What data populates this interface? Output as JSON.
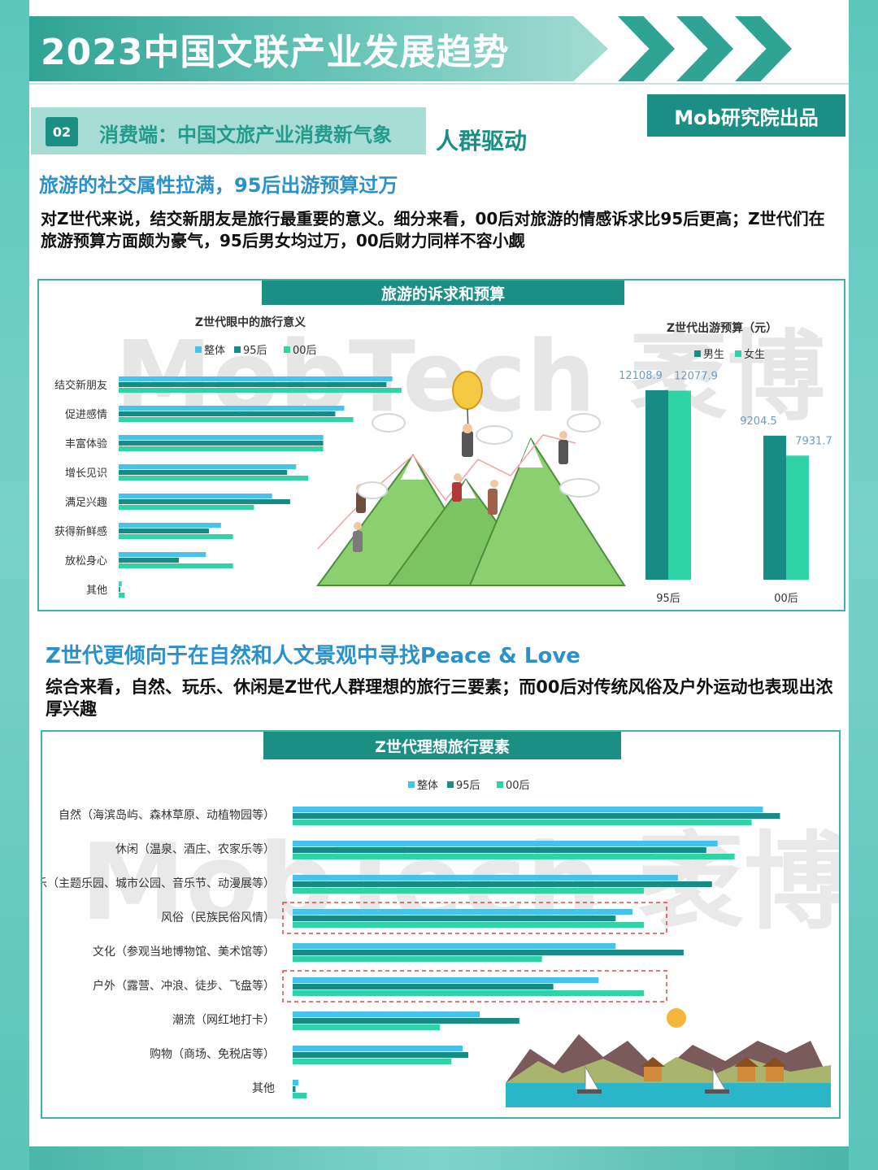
{
  "header": {
    "title": "2023中国文联产业发展趋势",
    "brand": "Mob研究院出品"
  },
  "section": {
    "number": "02",
    "title": "消费端：中国文旅产业消费新气象",
    "tag": "人群驱动"
  },
  "block1": {
    "heading": "旅游的社交属性拉满，95后出游预算过万",
    "body": "对Z世代来说，结交新朋友是旅行最重要的意义。细分来看，00后对旅游的情感诉求比95后更高；Z世代们在旅游预算方面颇为豪气，95后男女均过万，00后财力同样不容小觑",
    "panel_title": "旅游的诉求和预算"
  },
  "block2": {
    "heading": "Z世代更倾向于在自然和人文景观中寻找Peace & Love",
    "body": "综合来看，自然、玩乐、休闲是Z世代人群理想的旅行三要素；而00后对传统风俗及户外运动也表现出浓厚兴趣",
    "panel_title": "Z世代理想旅行要素"
  },
  "watermark": "MobTech 袤博",
  "colors": {
    "overall": "#46c3ec",
    "gen95": "#178c84",
    "gen00": "#2fd3a6",
    "male": "#178c84",
    "female": "#2fd3a6",
    "accent": "#1b8f84"
  },
  "chart_data": [
    {
      "type": "bar",
      "orientation": "horizontal",
      "title": "Z世代眼中的旅行意义",
      "categories": [
        "结交新朋友",
        "促进感情",
        "丰富体验",
        "增长见识",
        "满足兴趣",
        "获得新鲜感",
        "放松身心",
        "其他"
      ],
      "series": [
        {
          "name": "整体",
          "values": [
            91,
            75,
            68,
            59,
            51,
            34,
            29,
            1
          ]
        },
        {
          "name": "95后",
          "values": [
            89,
            72,
            68,
            56,
            57,
            30,
            20,
            0.5
          ]
        },
        {
          "name": "00后",
          "values": [
            94,
            78,
            68,
            63,
            45,
            38,
            38,
            2
          ]
        }
      ],
      "legend": "top",
      "grid": false
    },
    {
      "type": "bar",
      "title": "Z世代出游预算（元）",
      "categories": [
        "95后",
        "00后"
      ],
      "series": [
        {
          "name": "男生",
          "values": [
            12108.9,
            9204.5
          ]
        },
        {
          "name": "女生",
          "values": [
            12077.9,
            7931.7
          ]
        }
      ],
      "legend": "top",
      "grid": false
    },
    {
      "type": "bar",
      "orientation": "horizontal",
      "title": "Z世代理想旅行要素",
      "categories": [
        "自然（海滨岛屿、森林草原、动植物园等）",
        "休闲（温泉、酒庄、农家乐等）",
        "玩乐（主题乐园、城市公园、音乐节、动漫展等）",
        "风俗（民族民俗风情）",
        "文化（参观当地博物馆、美术馆等）",
        "户外（露营、冲浪、徒步、飞盘等）",
        "潮流（网红地打卡）",
        "购物（商场、免税店等）",
        "其他"
      ],
      "series": [
        {
          "name": "整体",
          "values": [
            83,
            75,
            68,
            60,
            57,
            54,
            33,
            30,
            1
          ]
        },
        {
          "name": "95后",
          "values": [
            86,
            73,
            74,
            57,
            69,
            46,
            40,
            31,
            0.5
          ]
        },
        {
          "name": "00后",
          "values": [
            81,
            78,
            62,
            62,
            44,
            62,
            26,
            28,
            2.5
          ]
        }
      ],
      "highlighted": [
        "风俗（民族民俗风情）",
        "户外（露营、冲浪、徒步、飞盘等）"
      ],
      "legend": "top",
      "grid": false
    }
  ]
}
